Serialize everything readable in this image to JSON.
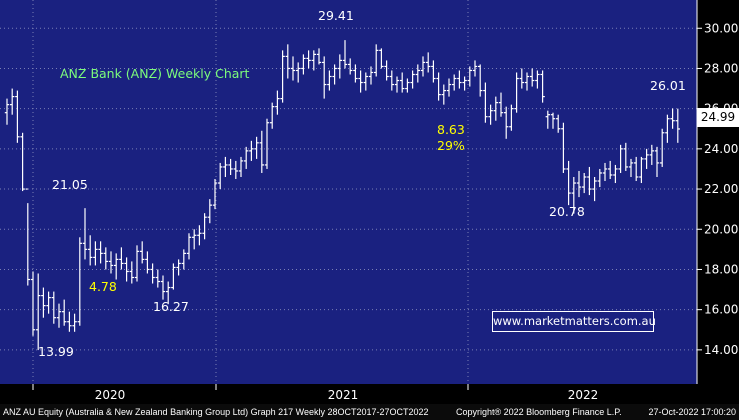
{
  "chart_data": {
    "type": "ohlc",
    "title": "ANZ Bank (ANZ) Weekly Chart",
    "y_ticks": [
      "14.00",
      "16.00",
      "18.00",
      "20.00",
      "22.00",
      "24.00",
      "26.00",
      "28.00",
      "30.00"
    ],
    "x_ticks": [
      "2020",
      "2021",
      "2022"
    ],
    "ylim": [
      12.6,
      30.6
    ],
    "last_price": "24.99",
    "grid": true,
    "annotations": [
      {
        "text": "29.41",
        "color": "#ffffff"
      },
      {
        "text": "21.05",
        "color": "#ffffff"
      },
      {
        "text": "26.01",
        "color": "#ffffff"
      },
      {
        "text": "20.78",
        "color": "#ffffff"
      },
      {
        "text": "16.27",
        "color": "#ffffff"
      },
      {
        "text": "13.99",
        "color": "#ffffff"
      },
      {
        "text": "4.78",
        "color": "#ffff00"
      },
      {
        "text": "8.63",
        "color": "#ffff00"
      },
      {
        "text": "29%",
        "color": "#ffff00"
      }
    ],
    "series": [
      {
        "name": "ANZ AU Equity",
        "bars": [
          [
            25.8,
            26.5,
            25.2,
            26.2
          ],
          [
            26.2,
            27.0,
            25.7,
            26.6
          ],
          [
            26.6,
            26.9,
            24.3,
            24.6
          ],
          [
            24.6,
            24.8,
            21.9,
            22.0
          ],
          [
            22.0,
            21.3,
            17.2,
            17.5
          ],
          [
            17.5,
            17.9,
            14.7,
            15.0
          ],
          [
            15.0,
            17.8,
            13.99,
            16.7
          ],
          [
            16.7,
            17.1,
            15.6,
            16.2
          ],
          [
            16.2,
            16.9,
            15.8,
            16.6
          ],
          [
            16.6,
            16.9,
            15.3,
            15.6
          ],
          [
            15.6,
            16.3,
            15.1,
            15.9
          ],
          [
            15.9,
            16.5,
            15.2,
            15.4
          ],
          [
            15.4,
            15.9,
            14.9,
            15.2
          ],
          [
            15.2,
            15.8,
            14.9,
            15.4
          ],
          [
            15.4,
            19.6,
            15.2,
            19.3
          ],
          [
            19.3,
            21.05,
            18.5,
            19.0
          ],
          [
            19.0,
            19.7,
            18.2,
            18.6
          ],
          [
            18.6,
            19.4,
            18.2,
            19.0
          ],
          [
            19.0,
            19.4,
            18.3,
            18.8
          ],
          [
            18.8,
            19.1,
            18.0,
            18.4
          ],
          [
            18.4,
            18.9,
            17.8,
            18.2
          ],
          [
            18.2,
            18.8,
            17.5,
            18.5
          ],
          [
            18.5,
            19.1,
            18.0,
            18.3
          ],
          [
            18.3,
            18.6,
            17.4,
            17.9
          ],
          [
            17.9,
            18.4,
            17.3,
            17.6
          ],
          [
            17.6,
            19.2,
            17.4,
            18.9
          ],
          [
            18.9,
            19.4,
            18.3,
            18.5
          ],
          [
            18.5,
            18.9,
            17.8,
            18.0
          ],
          [
            18.0,
            18.3,
            17.3,
            17.6
          ],
          [
            17.6,
            18.0,
            17.1,
            17.4
          ],
          [
            17.4,
            17.7,
            16.5,
            16.9
          ],
          [
            16.9,
            17.4,
            16.27,
            17.1
          ],
          [
            17.1,
            18.3,
            17.0,
            18.1
          ],
          [
            18.1,
            18.5,
            17.7,
            18.3
          ],
          [
            18.3,
            19.0,
            18.0,
            18.8
          ],
          [
            18.8,
            19.8,
            18.5,
            19.6
          ],
          [
            19.6,
            20.0,
            19.0,
            19.7
          ],
          [
            19.7,
            20.2,
            19.2,
            19.8
          ],
          [
            19.8,
            20.8,
            19.5,
            20.6
          ],
          [
            20.6,
            21.5,
            20.3,
            21.2
          ],
          [
            21.2,
            22.5,
            21.0,
            22.3
          ],
          [
            22.3,
            23.3,
            22.0,
            23.1
          ],
          [
            23.1,
            23.6,
            22.6,
            23.2
          ],
          [
            23.2,
            23.5,
            22.7,
            23.0
          ],
          [
            23.0,
            23.4,
            22.5,
            22.9
          ],
          [
            22.9,
            23.6,
            22.6,
            23.4
          ],
          [
            23.4,
            24.1,
            23.0,
            23.9
          ],
          [
            23.9,
            24.4,
            23.4,
            24.0
          ],
          [
            24.0,
            24.6,
            23.5,
            24.3
          ],
          [
            24.3,
            24.9,
            22.8,
            23.2
          ],
          [
            23.2,
            25.5,
            23.0,
            25.3
          ],
          [
            25.3,
            26.3,
            25.0,
            26.1
          ],
          [
            26.1,
            26.9,
            25.7,
            26.5
          ],
          [
            26.5,
            28.9,
            26.3,
            28.6
          ],
          [
            28.6,
            29.2,
            27.5,
            28.0
          ],
          [
            28.0,
            28.6,
            27.4,
            27.9
          ],
          [
            27.9,
            28.3,
            27.3,
            28.0
          ],
          [
            28.0,
            28.7,
            27.7,
            28.5
          ],
          [
            28.5,
            28.9,
            28.0,
            28.4
          ],
          [
            28.4,
            28.9,
            27.9,
            28.7
          ],
          [
            28.7,
            29.0,
            28.2,
            28.3
          ],
          [
            28.3,
            28.6,
            26.5,
            27.2
          ],
          [
            27.2,
            27.9,
            26.9,
            27.6
          ],
          [
            27.6,
            28.2,
            27.2,
            28.0
          ],
          [
            28.0,
            28.7,
            27.5,
            28.4
          ],
          [
            28.4,
            29.41,
            28.0,
            28.2
          ],
          [
            28.2,
            28.5,
            27.7,
            27.9
          ],
          [
            27.9,
            28.2,
            27.3,
            27.5
          ],
          [
            27.5,
            27.9,
            26.8,
            27.3
          ],
          [
            27.3,
            27.8,
            26.9,
            27.6
          ],
          [
            27.6,
            28.1,
            27.2,
            27.8
          ],
          [
            27.8,
            29.2,
            27.6,
            28.9
          ],
          [
            28.9,
            29.0,
            28.0,
            28.1
          ],
          [
            28.1,
            28.4,
            27.4,
            27.6
          ],
          [
            27.6,
            27.9,
            26.9,
            27.2
          ],
          [
            27.2,
            27.6,
            26.8,
            27.4
          ],
          [
            27.4,
            27.8,
            26.8,
            27.0
          ],
          [
            27.0,
            27.5,
            26.8,
            27.3
          ],
          [
            27.3,
            27.9,
            27.0,
            27.7
          ],
          [
            27.7,
            28.2,
            27.3,
            27.9
          ],
          [
            27.9,
            28.6,
            27.6,
            28.3
          ],
          [
            28.3,
            28.8,
            27.8,
            28.1
          ],
          [
            28.1,
            28.4,
            27.3,
            27.5
          ],
          [
            27.5,
            27.8,
            26.4,
            26.7
          ],
          [
            26.7,
            27.2,
            26.2,
            26.9
          ],
          [
            26.9,
            27.5,
            26.6,
            27.2
          ],
          [
            27.2,
            27.7,
            26.9,
            27.5
          ],
          [
            27.5,
            27.9,
            27.0,
            27.3
          ],
          [
            27.3,
            27.6,
            26.9,
            27.4
          ],
          [
            27.4,
            28.1,
            27.1,
            27.9
          ],
          [
            27.9,
            28.4,
            27.6,
            28.1
          ],
          [
            28.1,
            28.2,
            26.6,
            26.9
          ],
          [
            26.9,
            27.3,
            25.3,
            25.6
          ],
          [
            25.6,
            26.2,
            25.2,
            25.9
          ],
          [
            25.9,
            26.6,
            25.4,
            26.3
          ],
          [
            26.3,
            26.8,
            25.6,
            25.8
          ],
          [
            25.8,
            26.1,
            24.5,
            25.1
          ],
          [
            25.1,
            26.2,
            24.9,
            26.0
          ],
          [
            26.0,
            27.8,
            25.8,
            27.5
          ],
          [
            27.5,
            28.0,
            27.0,
            27.3
          ],
          [
            27.3,
            27.8,
            26.9,
            27.6
          ],
          [
            27.6,
            28.0,
            27.1,
            27.4
          ],
          [
            27.4,
            27.9,
            27.0,
            27.7
          ],
          [
            27.7,
            27.9,
            26.3,
            26.6
          ],
          [
            25.6,
            25.9,
            25.0,
            25.7
          ],
          [
            25.7,
            25.8,
            25.0,
            25.5
          ],
          [
            25.5,
            25.7,
            24.8,
            25.0
          ],
          [
            25.0,
            25.3,
            22.8,
            23.0
          ],
          [
            23.0,
            23.4,
            21.2,
            21.8
          ],
          [
            21.8,
            22.6,
            20.78,
            22.3
          ],
          [
            22.3,
            22.9,
            21.6,
            22.1
          ],
          [
            22.1,
            22.8,
            21.8,
            22.6
          ],
          [
            22.6,
            23.1,
            21.7,
            22.0
          ],
          [
            22.0,
            22.6,
            21.4,
            22.4
          ],
          [
            22.4,
            23.0,
            22.1,
            22.8
          ],
          [
            22.8,
            23.3,
            22.4,
            23.0
          ],
          [
            23.0,
            23.4,
            22.5,
            22.7
          ],
          [
            22.7,
            23.2,
            22.3,
            23.0
          ],
          [
            23.0,
            24.2,
            22.8,
            24.0
          ],
          [
            24.0,
            24.3,
            22.9,
            23.1
          ],
          [
            23.1,
            23.5,
            22.6,
            23.3
          ],
          [
            23.3,
            23.6,
            22.4,
            22.6
          ],
          [
            22.6,
            23.6,
            22.3,
            23.5
          ],
          [
            23.5,
            24.0,
            23.0,
            23.7
          ],
          [
            23.7,
            24.2,
            23.2,
            23.9
          ],
          [
            23.9,
            24.1,
            22.6,
            23.3
          ],
          [
            23.3,
            25.0,
            23.1,
            24.8
          ],
          [
            24.8,
            25.7,
            24.3,
            25.5
          ],
          [
            25.5,
            26.01,
            25.0,
            25.4
          ],
          [
            25.4,
            26.0,
            24.3,
            24.99
          ]
        ]
      }
    ]
  },
  "footer": {
    "left": "ANZ AU Equity (Australia & New Zealand Banking Group Ltd) Graph 217  Weekly 28OCT2017-27OCT2022",
    "copyright": "Copyright® 2022 Bloomberg Finance L.P.",
    "right": "27-Oct-2022 17:00:20"
  },
  "watermark": "www.marketmatters.com.au",
  "colors": {
    "background": "#1a2180",
    "bars": "#ffffff",
    "grid": "#7a7fb5",
    "yellow": "#ffff00",
    "green": "#7cfc7c"
  }
}
